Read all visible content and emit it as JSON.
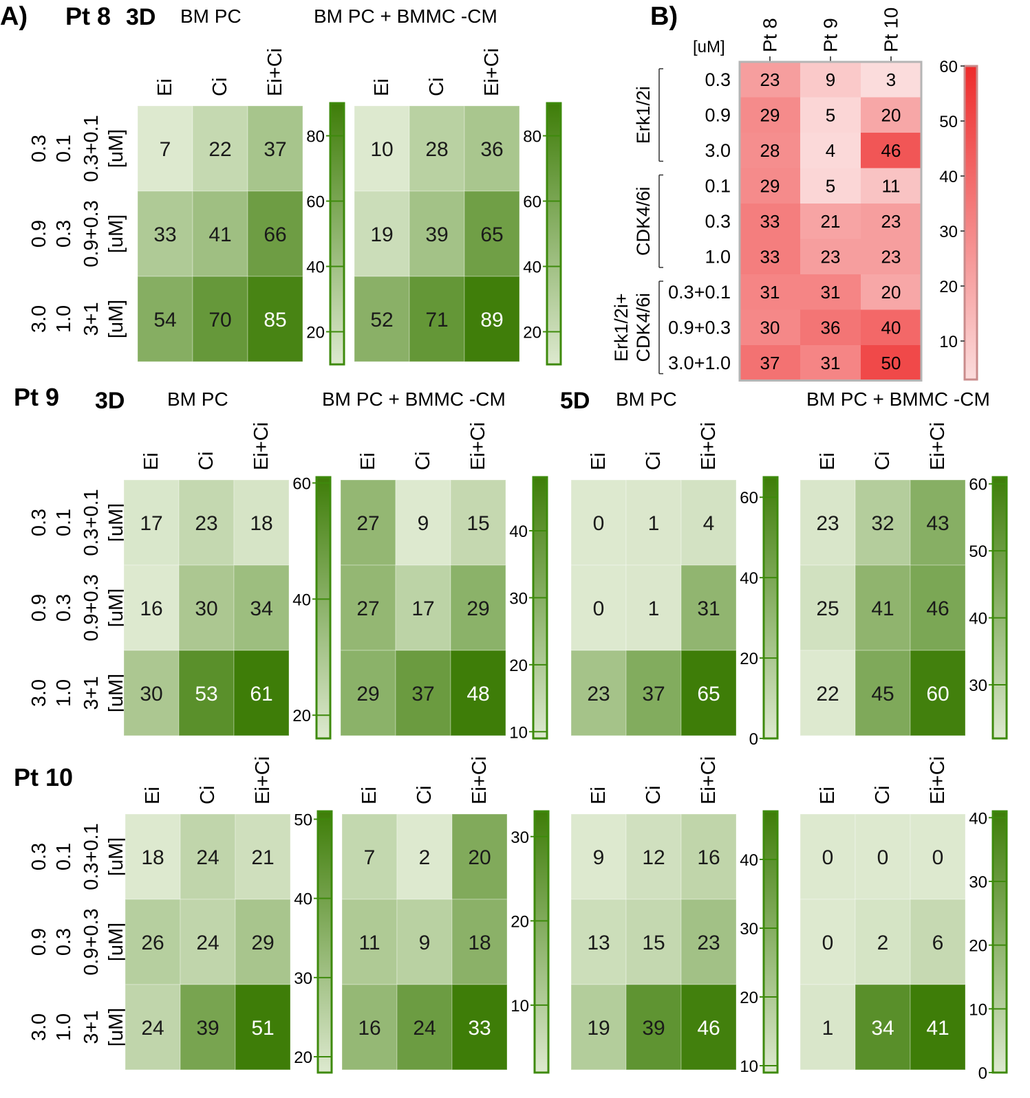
{
  "panel_labels": {
    "a": "A)",
    "b": "B)"
  },
  "palette": {
    "green_low": "#dde9cf",
    "green_high": "#3e7d08",
    "green_border": "#3e8a0c",
    "red_low": "#fbdcdc",
    "red_high": "#ee2a2a",
    "red_border": "#c98b8b"
  },
  "patients": [
    {
      "label": "Pt 8",
      "day_labels": [
        {
          "text": "3D",
          "col": 0
        }
      ]
    },
    {
      "label": "Pt 9",
      "day_labels": [
        {
          "text": "3D",
          "col": 0
        },
        {
          "text": "5D",
          "col": 2
        }
      ]
    },
    {
      "label": "Pt 10",
      "day_labels": []
    }
  ],
  "condition_labels": [
    "BM PC",
    "BM PC + BMMC -CM",
    "BM PC",
    "BM PC + BMMC -CM"
  ],
  "column_labels": [
    "Ei",
    "Ci",
    "Ei+Ci"
  ],
  "row_labels": [
    [
      "0.3",
      "0.1",
      "0.3+0.1",
      "[uM]"
    ],
    [
      "0.9",
      "0.3",
      "0.9+0.3",
      "[uM]"
    ],
    [
      "3.0",
      "1.0",
      "3+1",
      "[uM]"
    ]
  ],
  "chart_data": [
    {
      "type": "heatmap",
      "id": "pt8_3d_bmpc",
      "patient": "Pt 8",
      "day": "3D",
      "condition": "BM PC",
      "columns": [
        "Ei",
        "Ci",
        "Ei+Ci"
      ],
      "values": [
        [
          7,
          22,
          37
        ],
        [
          33,
          41,
          66
        ],
        [
          54,
          70,
          85
        ]
      ],
      "colorbar": {
        "range": [
          10,
          90
        ],
        "ticks": [
          20,
          40,
          60,
          80
        ]
      }
    },
    {
      "type": "heatmap",
      "id": "pt8_3d_cm",
      "patient": "Pt 8",
      "day": "3D",
      "condition": "BM PC + BMMC -CM",
      "columns": [
        "Ei",
        "Ci",
        "Ei+Ci"
      ],
      "values": [
        [
          10,
          28,
          36
        ],
        [
          19,
          39,
          65
        ],
        [
          52,
          71,
          89
        ]
      ],
      "colorbar": {
        "range": [
          10,
          90
        ],
        "ticks": [
          20,
          40,
          60,
          80
        ]
      }
    },
    {
      "type": "heatmap",
      "id": "pt9_3d_bmpc",
      "patient": "Pt 9",
      "day": "3D",
      "condition": "BM PC",
      "columns": [
        "Ei",
        "Ci",
        "Ei+Ci"
      ],
      "values": [
        [
          17,
          23,
          18
        ],
        [
          16,
          30,
          34
        ],
        [
          30,
          53,
          61
        ]
      ],
      "colorbar": {
        "range": [
          16,
          61
        ],
        "ticks": [
          20,
          40,
          60
        ]
      }
    },
    {
      "type": "heatmap",
      "id": "pt9_3d_cm",
      "patient": "Pt 9",
      "day": "3D",
      "condition": "BM PC + BMMC -CM",
      "columns": [
        "Ei",
        "Ci",
        "Ei+Ci"
      ],
      "values": [
        [
          27,
          9,
          15
        ],
        [
          27,
          17,
          29
        ],
        [
          29,
          37,
          48
        ]
      ],
      "colorbar": {
        "range": [
          9,
          48
        ],
        "ticks": [
          10,
          20,
          30,
          40
        ]
      }
    },
    {
      "type": "heatmap",
      "id": "pt9_5d_bmpc",
      "patient": "Pt 9",
      "day": "5D",
      "condition": "BM PC",
      "columns": [
        "Ei",
        "Ci",
        "Ei+Ci"
      ],
      "values": [
        [
          0,
          1,
          4
        ],
        [
          0,
          1,
          31
        ],
        [
          23,
          37,
          65
        ]
      ],
      "colorbar": {
        "range": [
          0,
          65
        ],
        "ticks": [
          0,
          20,
          40,
          60
        ]
      }
    },
    {
      "type": "heatmap",
      "id": "pt9_5d_cm",
      "patient": "Pt 9",
      "day": "5D",
      "condition": "BM PC + BMMC -CM",
      "columns": [
        "Ei",
        "Ci",
        "Ei+Ci"
      ],
      "values": [
        [
          23,
          32,
          43
        ],
        [
          25,
          41,
          46
        ],
        [
          22,
          45,
          60
        ]
      ],
      "colorbar": {
        "range": [
          22,
          61
        ],
        "ticks": [
          30,
          40,
          50,
          60
        ]
      }
    },
    {
      "type": "heatmap",
      "id": "pt10_3d_bmpc",
      "patient": "Pt 10",
      "day": "3D",
      "condition": "BM PC",
      "columns": [
        "Ei",
        "Ci",
        "Ei+Ci"
      ],
      "values": [
        [
          18,
          24,
          21
        ],
        [
          26,
          24,
          29
        ],
        [
          24,
          39,
          51
        ]
      ],
      "colorbar": {
        "range": [
          18,
          51
        ],
        "ticks": [
          20,
          30,
          40,
          50
        ]
      }
    },
    {
      "type": "heatmap",
      "id": "pt10_3d_cm",
      "patient": "Pt 10",
      "day": "3D",
      "condition": "BM PC + BMMC -CM",
      "columns": [
        "Ei",
        "Ci",
        "Ei+Ci"
      ],
      "values": [
        [
          7,
          2,
          20
        ],
        [
          11,
          9,
          18
        ],
        [
          16,
          24,
          33
        ]
      ],
      "colorbar": {
        "range": [
          2,
          33
        ],
        "ticks": [
          10,
          20,
          30
        ]
      }
    },
    {
      "type": "heatmap",
      "id": "pt10_5d_bmpc",
      "patient": "Pt 10",
      "day": "5D",
      "condition": "BM PC",
      "columns": [
        "Ei",
        "Ci",
        "Ei+Ci"
      ],
      "values": [
        [
          9,
          12,
          16
        ],
        [
          13,
          15,
          23
        ],
        [
          19,
          39,
          46
        ]
      ],
      "colorbar": {
        "range": [
          9,
          47
        ],
        "ticks": [
          10,
          20,
          30,
          40
        ]
      }
    },
    {
      "type": "heatmap",
      "id": "pt10_5d_cm",
      "patient": "Pt 10",
      "day": "5D",
      "condition": "BM PC + BMMC -CM",
      "columns": [
        "Ei",
        "Ci",
        "Ei+Ci"
      ],
      "values": [
        [
          0,
          0,
          0
        ],
        [
          0,
          2,
          6
        ],
        [
          1,
          34,
          41
        ]
      ],
      "colorbar": {
        "range": [
          0,
          41
        ],
        "ticks": [
          0,
          10,
          20,
          30,
          40
        ]
      }
    },
    {
      "type": "heatmap",
      "id": "panel_b",
      "unit_label": "[uM]",
      "columns": [
        "Pt 8",
        "Pt 9",
        "Pt 10"
      ],
      "groups": [
        {
          "label": "Erk1/2i",
          "rows": [
            "0.3",
            "0.9",
            "3.0"
          ]
        },
        {
          "label": "CDK4/6i",
          "rows": [
            "0.1",
            "0.3",
            "1.0"
          ]
        },
        {
          "label": [
            "Erk1/2i+",
            "CDK4/6i"
          ],
          "rows": [
            "0.3+0.1",
            "0.9+0.3",
            "3.0+1.0"
          ]
        }
      ],
      "values": [
        [
          23,
          9,
          3
        ],
        [
          29,
          5,
          20
        ],
        [
          28,
          4,
          46
        ],
        [
          29,
          5,
          11
        ],
        [
          33,
          21,
          23
        ],
        [
          33,
          23,
          23
        ],
        [
          31,
          31,
          20
        ],
        [
          30,
          36,
          40
        ],
        [
          37,
          31,
          50
        ]
      ],
      "colorbar": {
        "range": [
          3,
          60
        ],
        "ticks": [
          10,
          20,
          30,
          40,
          50,
          60
        ]
      }
    }
  ]
}
